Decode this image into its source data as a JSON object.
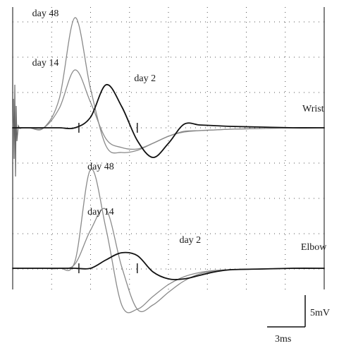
{
  "chart_data": {
    "type": "line",
    "title": "",
    "grid": true,
    "scale_bar": {
      "voltage_label": "5mV",
      "time_label": "3ms"
    },
    "panels": [
      {
        "site": "Wrist",
        "series": [
          {
            "name": "day 48",
            "color": "#8a8a8a",
            "x": [
              0,
              2,
              4,
              6,
              8,
              10,
              12,
              14,
              16,
              18,
              20,
              22,
              24,
              26,
              28,
              32,
              36,
              40
            ],
            "y": [
              0,
              0,
              0,
              4.2,
              15.6,
              5.5,
              -2.6,
              -3.5,
              -3.2,
              -2.2,
              -1.2,
              -0.5,
              -0.4,
              -0.3,
              -0.2,
              -0.1,
              0,
              0
            ]
          },
          {
            "name": "day 14",
            "color": "#8a8a8a",
            "x": [
              0,
              2,
              4,
              6,
              8,
              10,
              12,
              14,
              16,
              18,
              20,
              22,
              24,
              26,
              28,
              32,
              36,
              40
            ],
            "y": [
              0,
              0,
              0,
              2.8,
              8.2,
              3.6,
              -1.6,
              -2.8,
              -3.0,
              -2.2,
              -1.2,
              -0.6,
              -0.4,
              -0.3,
              -0.2,
              -0.1,
              0,
              0
            ]
          },
          {
            "name": "day 2",
            "color": "#111111",
            "x": [
              0,
              2,
              4,
              6,
              8,
              10,
              12,
              14,
              16,
              18,
              20,
              22,
              24,
              26,
              28,
              32,
              36,
              40
            ],
            "y": [
              0,
              0,
              0,
              0,
              0,
              1.5,
              6.1,
              3.0,
              -1.8,
              -4.2,
              -2.2,
              0.5,
              0.4,
              0.3,
              0.2,
              0.1,
              0,
              0
            ]
          }
        ]
      },
      {
        "site": "Elbow",
        "series": [
          {
            "name": "day 48",
            "color": "#8a8a8a",
            "x": [
              0,
              2,
              4,
              6,
              8,
              10,
              12,
              14,
              16,
              18,
              20,
              22,
              24,
              26,
              28,
              32,
              36,
              40
            ],
            "y": [
              0,
              0,
              0,
              0,
              1.0,
              14.0,
              5.5,
              -5.2,
              -5.8,
              -4.0,
              -2.3,
              -1.2,
              -0.6,
              -0.3,
              -0.2,
              -0.1,
              0,
              0
            ]
          },
          {
            "name": "day 14",
            "color": "#8a8a8a",
            "x": [
              0,
              2,
              4,
              6,
              8,
              10,
              12,
              14,
              16,
              18,
              20,
              22,
              24,
              26,
              28,
              32,
              36,
              40
            ],
            "y": [
              0,
              0,
              0,
              0,
              0.6,
              5.4,
              8.3,
              0.2,
              -5.8,
              -5.2,
              -3.4,
              -1.8,
              -0.8,
              -0.4,
              -0.2,
              -0.1,
              0,
              0
            ]
          },
          {
            "name": "day 2",
            "color": "#111111",
            "x": [
              0,
              2,
              4,
              6,
              8,
              10,
              12,
              14,
              16,
              18,
              20,
              22,
              24,
              26,
              28,
              32,
              36,
              40
            ],
            "y": [
              0,
              0,
              0,
              0,
              0,
              0,
              1.2,
              2.2,
              1.8,
              -0.5,
              -1.5,
              -1.5,
              -1.0,
              -0.5,
              -0.2,
              -0.1,
              0,
              0
            ]
          }
        ]
      }
    ],
    "labels": [
      {
        "text": "day 48",
        "panel": "Wrist",
        "at_ms": 2.5,
        "at_mv": 15.8
      },
      {
        "text": "day 14",
        "panel": "Wrist",
        "at_ms": 2.5,
        "at_mv": 8.8
      },
      {
        "text": "day 2",
        "panel": "Wrist",
        "at_ms": 15.6,
        "at_mv": 6.6
      },
      {
        "text": "day 48",
        "panel": "Elbow",
        "at_ms": 9.6,
        "at_mv": 14.0
      },
      {
        "text": "day 14",
        "panel": "Elbow",
        "at_ms": 9.6,
        "at_mv": 7.6
      },
      {
        "text": "day 2",
        "panel": "Elbow",
        "at_ms": 21.4,
        "at_mv": 3.6
      },
      {
        "text": "Wrist",
        "panel": "Wrist",
        "at_ms": 37.2,
        "at_mv": 2.3
      },
      {
        "text": "Elbow",
        "panel": "Elbow",
        "at_ms": 37.0,
        "at_mv": 2.6
      }
    ]
  }
}
